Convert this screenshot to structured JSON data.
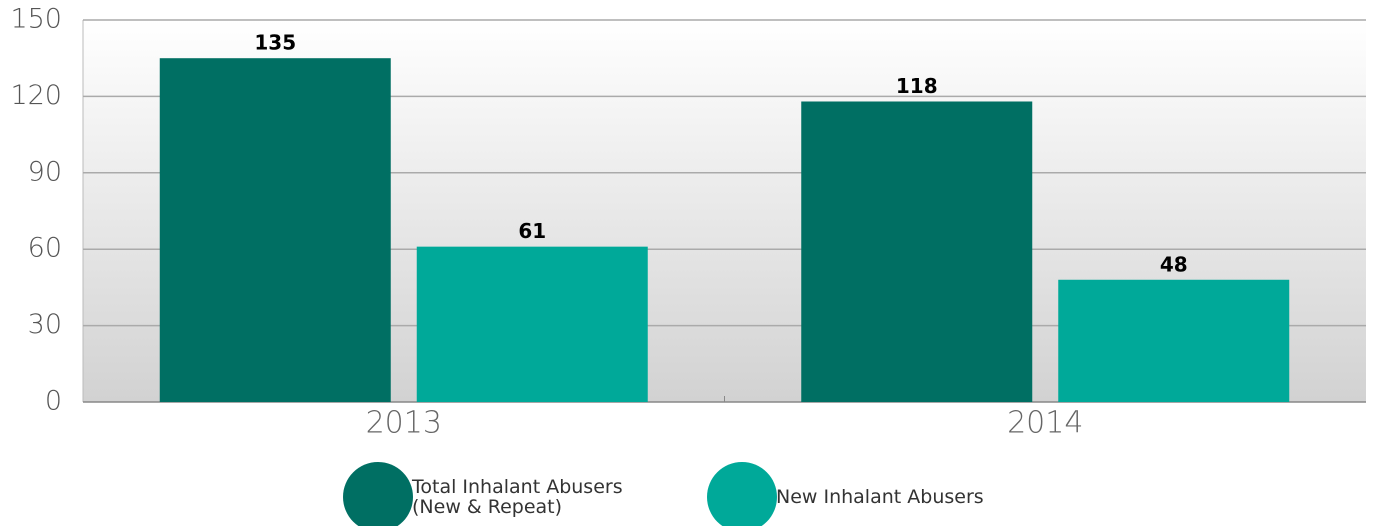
{
  "chart_data": {
    "type": "bar",
    "categories": [
      "2013",
      "2014"
    ],
    "series": [
      {
        "name": "Total Inhalant Abusers (New & Repeat)",
        "color": "#006f63",
        "values": [
          135,
          118
        ]
      },
      {
        "name": "New Inhalant Abusers",
        "color": "#00a999",
        "values": [
          61,
          48
        ]
      }
    ],
    "ylim": [
      0,
      150
    ],
    "yticks": [
      0,
      30,
      60,
      90,
      120,
      150
    ],
    "grid": true,
    "legend": "bottom"
  }
}
